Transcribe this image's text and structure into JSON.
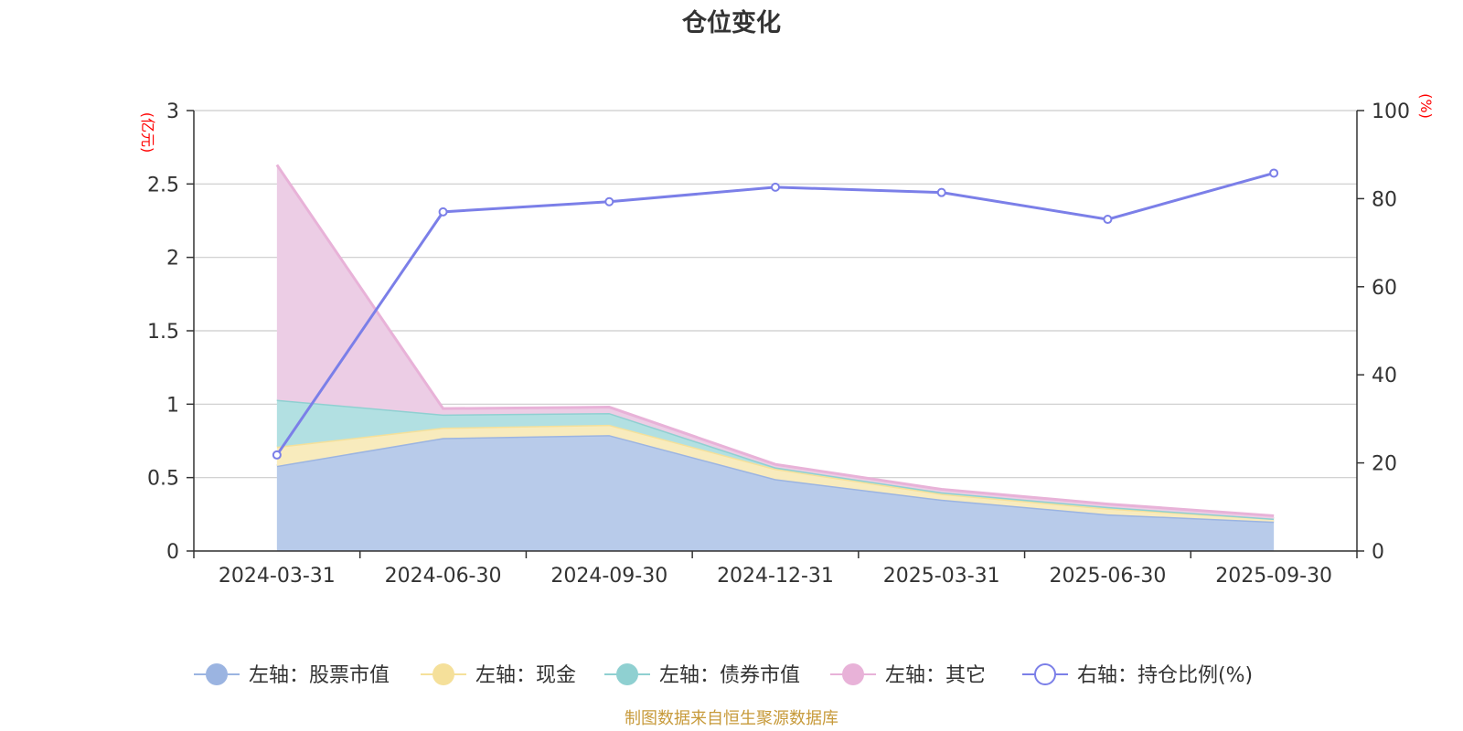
{
  "chart_data": {
    "type": "area",
    "title": "仓位变化",
    "left_axis": {
      "unit": "(亿元)",
      "ylim": [
        0,
        3
      ],
      "ticks": [
        "0",
        "0.5",
        "1",
        "1.5",
        "2",
        "2.5",
        "3"
      ],
      "tick_values": [
        0,
        0.5,
        1,
        1.5,
        2,
        2.5,
        3
      ]
    },
    "right_axis": {
      "unit": "(%)",
      "ylim": [
        0,
        100
      ],
      "ticks": [
        "0",
        "20",
        "40",
        "60",
        "80",
        "100"
      ],
      "tick_values": [
        0,
        20,
        40,
        60,
        80,
        100
      ]
    },
    "categories": [
      "2024-03-31",
      "2024-06-30",
      "2024-09-30",
      "2024-12-31",
      "2025-03-31",
      "2025-06-30",
      "2025-09-30"
    ],
    "stacked_series": [
      {
        "name": "左轴：股票市值",
        "axis": "left",
        "color": "#9bb4e1",
        "fill": "#b8cbea",
        "values": [
          0.58,
          0.77,
          0.79,
          0.49,
          0.35,
          0.25,
          0.2
        ]
      },
      {
        "name": "左轴：现金",
        "axis": "left",
        "color": "#f5e09a",
        "fill": "#f8ebbd",
        "values": [
          0.13,
          0.07,
          0.07,
          0.07,
          0.04,
          0.04,
          0.02
        ]
      },
      {
        "name": "左轴：债券市值",
        "axis": "left",
        "color": "#8fd0d1",
        "fill": "#b2e0e2",
        "values": [
          0.32,
          0.09,
          0.08,
          0.01,
          0.01,
          0.01,
          0.0
        ]
      },
      {
        "name": "左轴：其它",
        "axis": "left",
        "color": "#e8b2d8",
        "fill": "#eccde5",
        "values": [
          1.6,
          0.04,
          0.04,
          0.02,
          0.02,
          0.02,
          0.02
        ]
      }
    ],
    "line_series": {
      "name": "右轴：持仓比例(%)",
      "axis": "right",
      "color": "#7b7fe8",
      "values": [
        21.8,
        77.0,
        79.3,
        82.6,
        81.4,
        75.3,
        85.8
      ]
    },
    "grid": true,
    "legend": "bottom",
    "source": "制图数据来自恒生聚源数据库"
  }
}
